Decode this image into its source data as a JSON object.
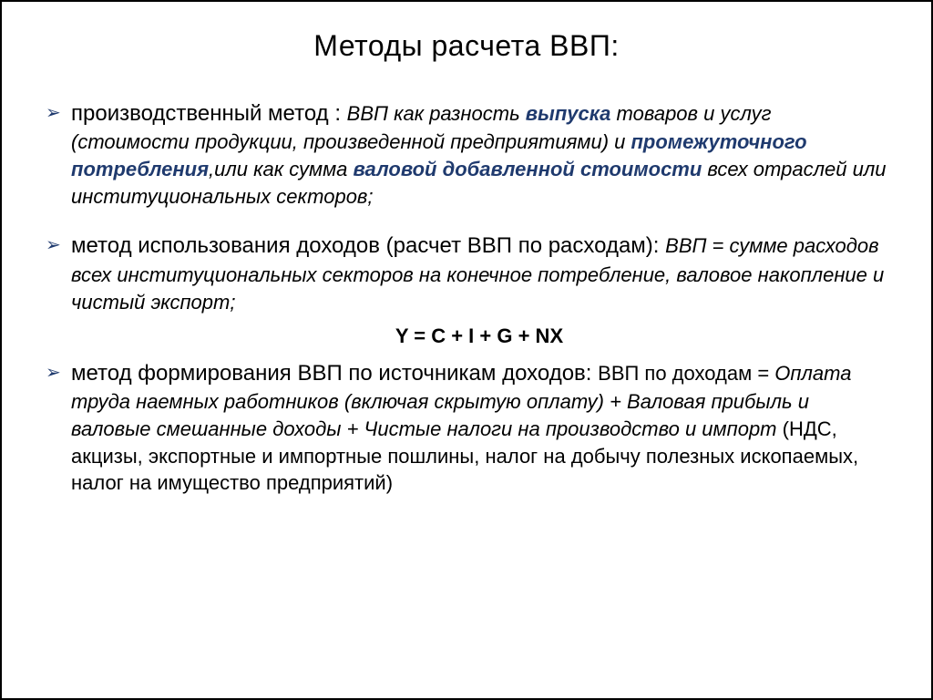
{
  "colors": {
    "text": "#000000",
    "highlight": "#1f3a6e",
    "border": "#000000",
    "background": "#ffffff"
  },
  "typography": {
    "title_fontsize": 32,
    "term_fontsize": 24,
    "body_fontsize": 22,
    "font_family": "Arial"
  },
  "title": "Методы расчета ВВП:",
  "items": [
    {
      "term": "производственный метод : ",
      "def_pre": "ВВП как разность ",
      "hl1": "выпуска",
      "def_mid1": " товаров и услуг (стоимости продукции, произведенной предприятиями) и ",
      "hl2": "промежуточного потребления",
      "def_mid2": ",или как сумма ",
      "hl3": "валовой добавленной стоимости",
      "def_post": " всех отраслей или институциональных секторов;"
    },
    {
      "term": "метод использования доходов (расчет ВВП по расходам): ",
      "def": "ВВП = сумме расходов всех институциональных секторов на конечное потребление, валовое накопление и чистый экспорт;",
      "formula": "Y = C + I + G + NX"
    },
    {
      "term": "метод формирования ВВП по источникам доходов: ",
      "def_lead": "ВВП по доходам = ",
      "def_italic": "Оплата труда наемных работников (включая скрытую оплату) + Валовая прибыль и валовые смешанные доходы + Чистые налоги на производство и импорт ",
      "def_plain": "(НДС, акцизы, экспортные и импортные пошлины, налог на добычу полезных ископаемых, налог на имущество предприятий)"
    }
  ]
}
